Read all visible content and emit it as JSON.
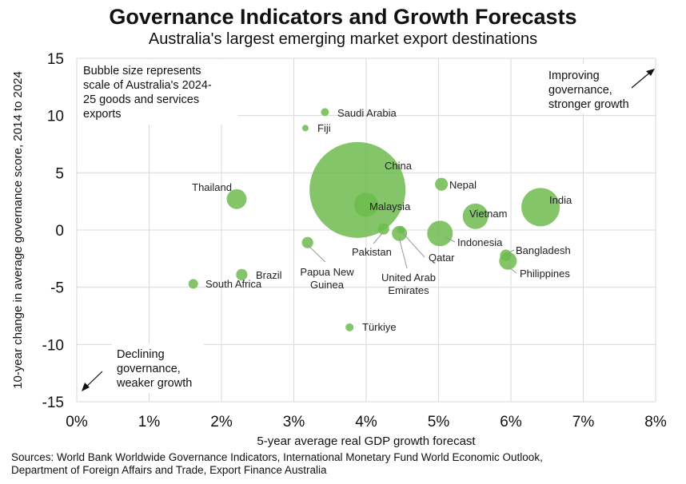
{
  "title": "Governance Indicators and Growth Forecasts",
  "subtitle": "Australia's largest emerging market export destinations",
  "sources": [
    "Sources: World Bank Worldwide Governance Indicators, International Monetary Fund World Economic Outlook,",
    "Department of Foreign Affairs and Trade, Export Finance Australia"
  ],
  "chart_data": {
    "type": "scatter",
    "subtype": "bubble",
    "xlabel": "5-year average real GDP growth forecast",
    "ylabel": "10-year change in average governance score, 2014 to 2024",
    "xlim": [
      0,
      8
    ],
    "ylim": [
      -15,
      15
    ],
    "x_ticks": [
      "0%",
      "1%",
      "2%",
      "3%",
      "4%",
      "5%",
      "6%",
      "7%",
      "8%"
    ],
    "y_ticks": [
      "15",
      "10",
      "5",
      "0",
      "-5",
      "-10",
      "-15"
    ],
    "grid": true,
    "bubble_color": "#6dbb4e",
    "annotations": {
      "bubble_note": [
        "Bubble size represents",
        "scale of Australia's 2024-",
        "25 goods and services",
        "exports"
      ],
      "top_right": [
        "Improving",
        "governance,",
        "stronger growth"
      ],
      "bottom_left": [
        "Declining",
        "governance,",
        "weaker growth"
      ]
    },
    "points": [
      {
        "name": "China",
        "x": 3.88,
        "y": 3.5,
        "size": 100
      },
      {
        "name": "Saudi Arabia",
        "x": 3.43,
        "y": 10.3,
        "size": 0.7
      },
      {
        "name": "Fiji",
        "x": 3.16,
        "y": 8.9,
        "size": 0.45
      },
      {
        "name": "Thailand",
        "x": 2.21,
        "y": 2.7,
        "size": 4.3
      },
      {
        "name": "Malaysia",
        "x": 4.0,
        "y": 2.2,
        "size": 6.3
      },
      {
        "name": "Pakistan",
        "x": 4.24,
        "y": 0.1,
        "size": 1.4
      },
      {
        "name": "United Arab Emirates",
        "x": 4.46,
        "y": -0.3,
        "size": 2.5
      },
      {
        "name": "Qatar",
        "x": 4.48,
        "y": 0.0,
        "size": 0.7
      },
      {
        "name": "Papua New Guinea",
        "x": 3.19,
        "y": -1.1,
        "size": 1.4
      },
      {
        "name": "Brazil",
        "x": 2.28,
        "y": -3.9,
        "size": 1.4
      },
      {
        "name": "South Africa",
        "x": 1.61,
        "y": -4.7,
        "size": 1.0
      },
      {
        "name": "Türkiye",
        "x": 3.77,
        "y": -8.5,
        "size": 0.7
      },
      {
        "name": "Nepal",
        "x": 5.04,
        "y": 4.0,
        "size": 1.8
      },
      {
        "name": "Vietnam",
        "x": 5.51,
        "y": 1.2,
        "size": 7.1
      },
      {
        "name": "India",
        "x": 6.41,
        "y": 2.0,
        "size": 16
      },
      {
        "name": "Indonesia",
        "x": 5.02,
        "y": -0.3,
        "size": 7.1
      },
      {
        "name": "Bangladesh",
        "x": 5.93,
        "y": -2.2,
        "size": 1.4
      },
      {
        "name": "Philippines",
        "x": 5.96,
        "y": -2.7,
        "size": 3.4
      }
    ]
  }
}
